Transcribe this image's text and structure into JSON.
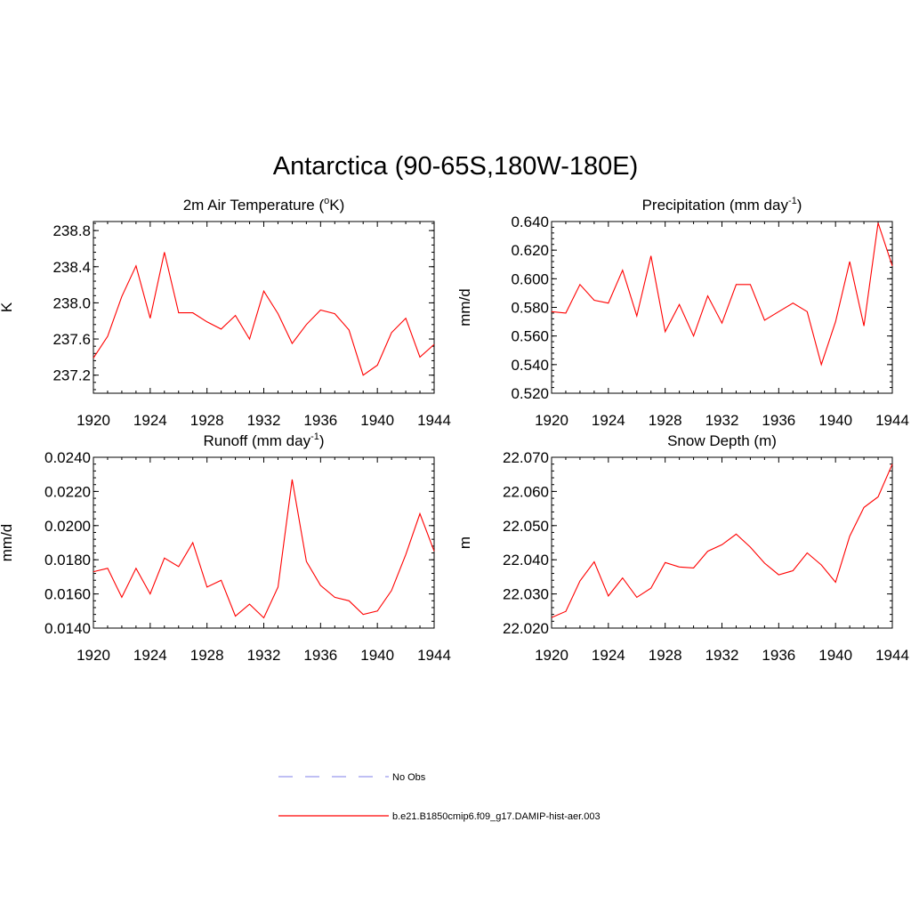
{
  "figure": {
    "title": "Antarctica (90-65S,180W-180E)"
  },
  "legend": {
    "items": [
      {
        "label": "No Obs",
        "color": "#9999ee",
        "dashed": true
      },
      {
        "label": "b.e21.B1850cmip6.f09_g17.DAMIP-hist-aer.003",
        "color": "#ff0000",
        "dashed": false
      }
    ]
  },
  "chart_data": [
    {
      "type": "line",
      "title": "2m Air Temperature (",
      "title_sup": "o",
      "title_tail": "K)",
      "ylabel": "K",
      "xlim": [
        1920,
        1944
      ],
      "ylim": [
        237.0,
        238.9
      ],
      "xticks": [
        1920,
        1924,
        1928,
        1932,
        1936,
        1940,
        1944
      ],
      "yticks": [
        "237.2",
        "237.6",
        "238.0",
        "238.4",
        "238.8"
      ],
      "x": [
        1920,
        1921,
        1922,
        1923,
        1924,
        1925,
        1926,
        1927,
        1928,
        1929,
        1930,
        1931,
        1932,
        1933,
        1934,
        1935,
        1936,
        1937,
        1938,
        1939,
        1940,
        1941,
        1942,
        1943,
        1944
      ],
      "series": [
        {
          "color": "#ff0000",
          "values": [
            237.39,
            237.63,
            238.07,
            238.41,
            237.83,
            238.56,
            237.89,
            237.89,
            237.79,
            237.71,
            237.86,
            237.6,
            238.13,
            237.88,
            237.55,
            237.76,
            237.92,
            237.88,
            237.7,
            237.2,
            237.31,
            237.67,
            237.83,
            237.4,
            237.54
          ]
        }
      ]
    },
    {
      "type": "line",
      "title": "Precipitation (mm day",
      "title_sup": "-1",
      "title_tail": ")",
      "ylabel": "mm/d",
      "xlim": [
        1920,
        1944
      ],
      "ylim": [
        0.52,
        0.64
      ],
      "xticks": [
        1920,
        1924,
        1928,
        1932,
        1936,
        1940,
        1944
      ],
      "yticks": [
        "0.520",
        "0.540",
        "0.560",
        "0.580",
        "0.600",
        "0.620",
        "0.640"
      ],
      "x": [
        1920,
        1921,
        1922,
        1923,
        1924,
        1925,
        1926,
        1927,
        1928,
        1929,
        1930,
        1931,
        1932,
        1933,
        1934,
        1935,
        1936,
        1937,
        1938,
        1939,
        1940,
        1941,
        1942,
        1943,
        1944
      ],
      "series": [
        {
          "color": "#ff0000",
          "values": [
            0.577,
            0.576,
            0.596,
            0.585,
            0.583,
            0.606,
            0.574,
            0.616,
            0.563,
            0.582,
            0.56,
            0.588,
            0.569,
            0.596,
            0.596,
            0.571,
            0.577,
            0.583,
            0.577,
            0.54,
            0.57,
            0.612,
            0.567,
            0.639,
            0.609
          ]
        }
      ]
    },
    {
      "type": "line",
      "title": "Runoff (mm day",
      "title_sup": "-1",
      "title_tail": ")",
      "ylabel": "mm/d",
      "xlim": [
        1920,
        1944
      ],
      "ylim": [
        0.014,
        0.024
      ],
      "xticks": [
        1920,
        1924,
        1928,
        1932,
        1936,
        1940,
        1944
      ],
      "yticks": [
        "0.0140",
        "0.0160",
        "0.0180",
        "0.0200",
        "0.0220",
        "0.0240"
      ],
      "x": [
        1920,
        1921,
        1922,
        1923,
        1924,
        1925,
        1926,
        1927,
        1928,
        1929,
        1930,
        1931,
        1932,
        1933,
        1934,
        1935,
        1936,
        1937,
        1938,
        1939,
        1940,
        1941,
        1942,
        1943,
        1944
      ],
      "series": [
        {
          "color": "#ff0000",
          "values": [
            0.0173,
            0.0175,
            0.0158,
            0.0175,
            0.016,
            0.0181,
            0.0176,
            0.019,
            0.0164,
            0.0168,
            0.0147,
            0.0154,
            0.0146,
            0.0164,
            0.0227,
            0.0179,
            0.0165,
            0.0158,
            0.0156,
            0.0148,
            0.015,
            0.0162,
            0.0183,
            0.0207,
            0.0185
          ]
        }
      ]
    },
    {
      "type": "line",
      "title": "Snow Depth (m)",
      "title_sup": "",
      "title_tail": "",
      "ylabel": "m",
      "xlim": [
        1920,
        1944
      ],
      "ylim": [
        22.02,
        22.07
      ],
      "xticks": [
        1920,
        1924,
        1928,
        1932,
        1936,
        1940,
        1944
      ],
      "yticks": [
        "22.020",
        "22.030",
        "22.040",
        "22.050",
        "22.060",
        "22.070"
      ],
      "x": [
        1920,
        1921,
        1922,
        1923,
        1924,
        1925,
        1926,
        1927,
        1928,
        1929,
        1930,
        1931,
        1932,
        1933,
        1934,
        1935,
        1936,
        1937,
        1938,
        1939,
        1940,
        1941,
        1942,
        1943,
        1944
      ],
      "series": [
        {
          "color": "#ff0000",
          "values": [
            22.0231,
            22.0249,
            22.0338,
            22.0394,
            22.0294,
            22.0347,
            22.029,
            22.0317,
            22.0392,
            22.0379,
            22.0376,
            22.0425,
            22.0444,
            22.0475,
            22.0437,
            22.039,
            22.0356,
            22.0368,
            22.042,
            22.0385,
            22.0334,
            22.0469,
            22.0553,
            22.0584,
            22.068
          ]
        }
      ]
    }
  ]
}
